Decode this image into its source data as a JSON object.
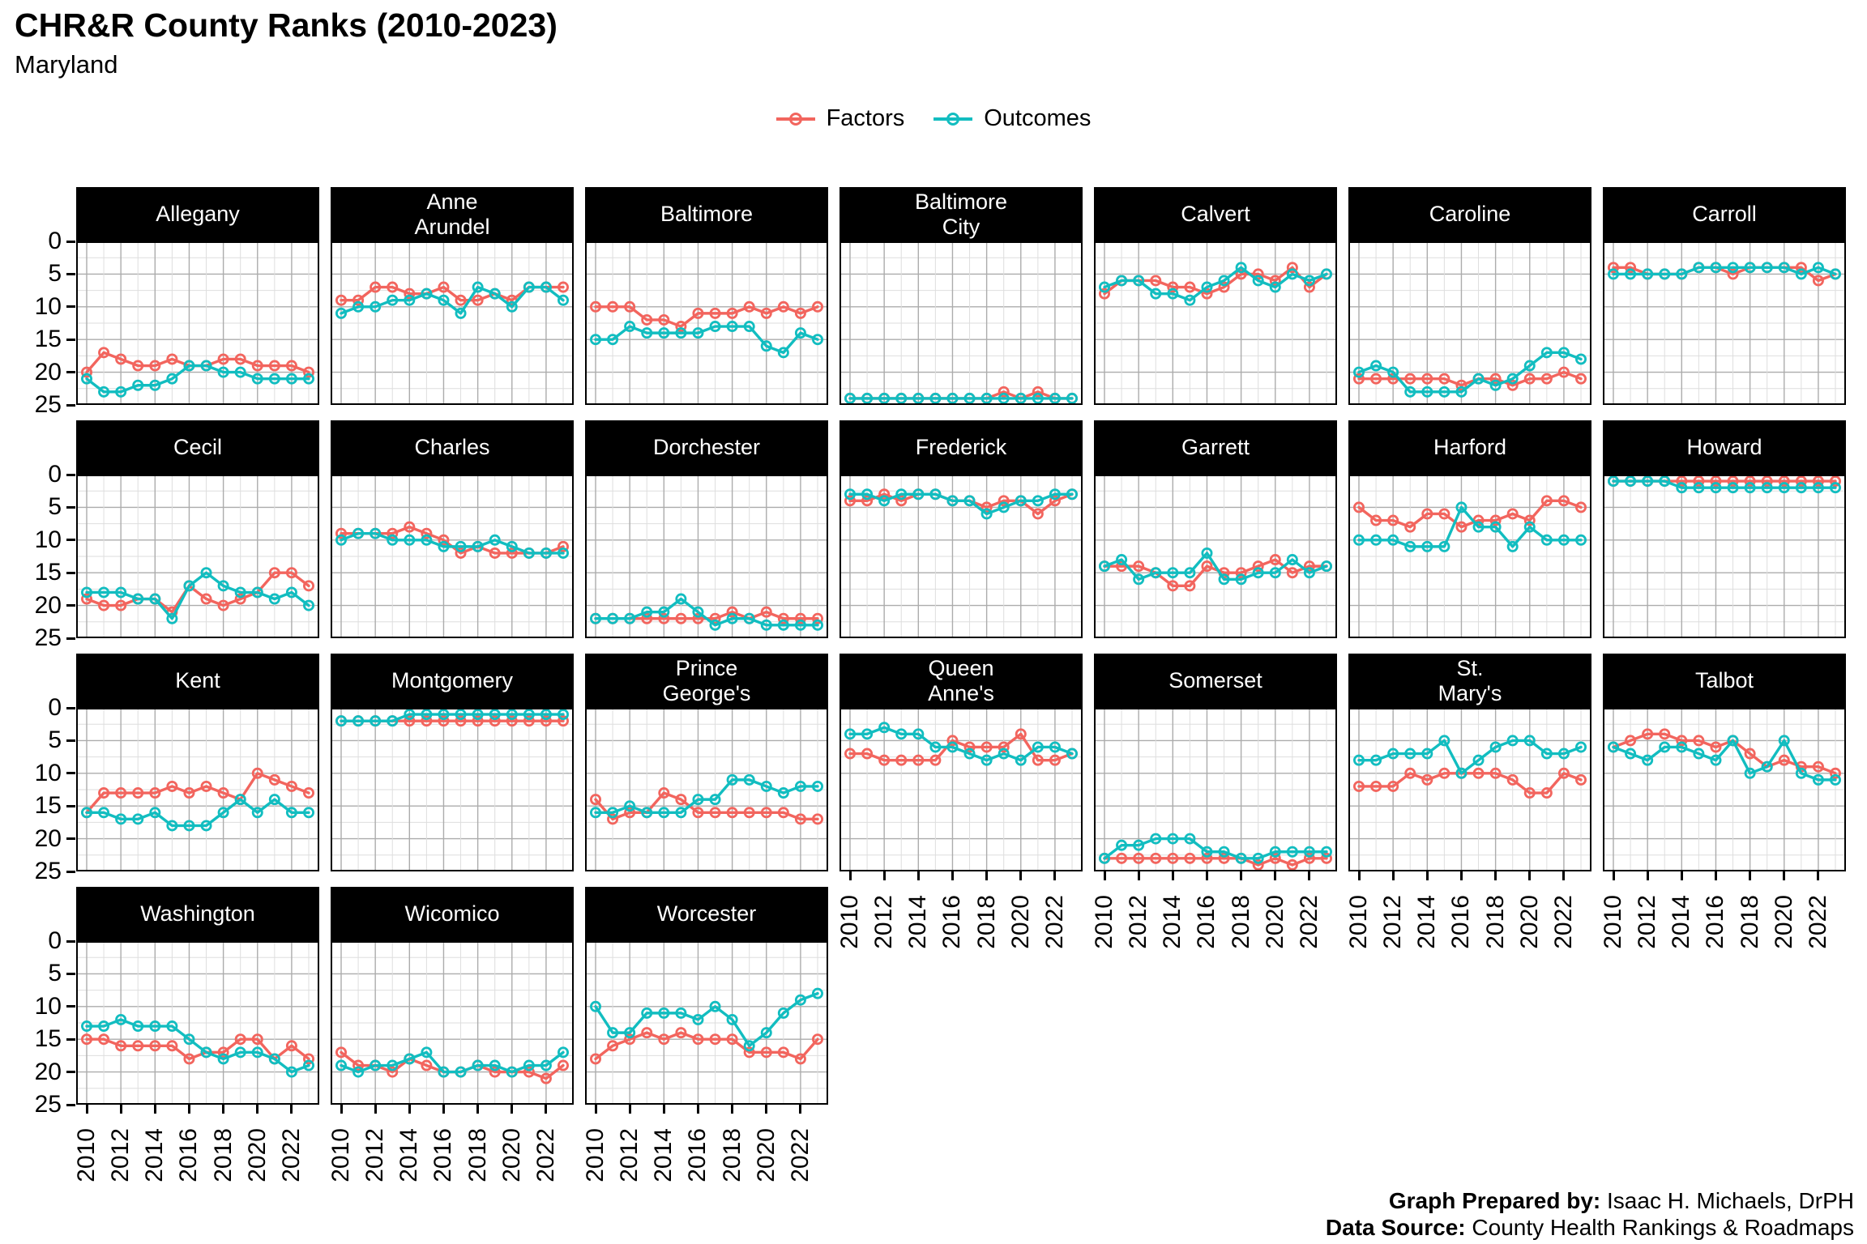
{
  "header": {
    "title": "CHR&R County Ranks (2010-2023)",
    "subtitle": "Maryland"
  },
  "legend": {
    "items": [
      {
        "label": "Factors",
        "color": "#F2655E"
      },
      {
        "label": "Outcomes",
        "color": "#12BDC0"
      }
    ]
  },
  "axes": {
    "x_years": [
      2010,
      2011,
      2012,
      2013,
      2014,
      2015,
      2016,
      2017,
      2018,
      2019,
      2020,
      2021,
      2022,
      2023
    ],
    "x_tick_labels": [
      "2010",
      "2012",
      "2014",
      "2016",
      "2018",
      "2020",
      "2022"
    ],
    "y_tick_labels": [
      "0",
      "5",
      "10",
      "15",
      "20",
      "25"
    ],
    "y_ticks": [
      0,
      5,
      10,
      15,
      20,
      25
    ],
    "y_range": [
      0,
      25
    ]
  },
  "chart_data": {
    "type": "line",
    "title": "CHR&R County Ranks (2010-2023)",
    "subtitle": "Maryland",
    "x": [
      2010,
      2011,
      2012,
      2013,
      2014,
      2015,
      2016,
      2017,
      2018,
      2019,
      2020,
      2021,
      2022,
      2023
    ],
    "ylim": [
      0,
      25
    ],
    "y_inverted_axis": true,
    "grid": "on",
    "legend_position": "top-center",
    "series_names": [
      "Factors",
      "Outcomes"
    ],
    "facets": [
      {
        "name": "Allegany",
        "factors": [
          20,
          17,
          18,
          19,
          19,
          18,
          19,
          19,
          18,
          18,
          19,
          19,
          19,
          20
        ],
        "outcomes": [
          21,
          23,
          23,
          22,
          22,
          21,
          19,
          19,
          20,
          20,
          21,
          21,
          21,
          21
        ]
      },
      {
        "name": "Anne\nArundel",
        "factors": [
          9,
          9,
          7,
          7,
          8,
          8,
          7,
          9,
          9,
          8,
          9,
          7,
          7,
          7
        ],
        "outcomes": [
          11,
          10,
          10,
          9,
          9,
          8,
          9,
          11,
          7,
          8,
          10,
          7,
          7,
          9
        ]
      },
      {
        "name": "Baltimore",
        "factors": [
          10,
          10,
          10,
          12,
          12,
          13,
          11,
          11,
          11,
          10,
          11,
          10,
          11,
          10
        ],
        "outcomes": [
          15,
          15,
          13,
          14,
          14,
          14,
          14,
          13,
          13,
          13,
          16,
          17,
          14,
          15
        ]
      },
      {
        "name": "Baltimore\nCity",
        "factors": [
          24,
          24,
          24,
          24,
          24,
          24,
          24,
          24,
          24,
          23,
          24,
          23,
          24,
          24
        ],
        "outcomes": [
          24,
          24,
          24,
          24,
          24,
          24,
          24,
          24,
          24,
          24,
          24,
          24,
          24,
          24
        ]
      },
      {
        "name": "Calvert",
        "factors": [
          8,
          6,
          6,
          6,
          7,
          7,
          8,
          7,
          5,
          5,
          6,
          4,
          7,
          5
        ],
        "outcomes": [
          7,
          6,
          6,
          8,
          8,
          9,
          7,
          6,
          4,
          6,
          7,
          5,
          6,
          5
        ]
      },
      {
        "name": "Caroline",
        "factors": [
          21,
          21,
          21,
          21,
          21,
          21,
          22,
          21,
          21,
          22,
          21,
          21,
          20,
          21
        ],
        "outcomes": [
          20,
          19,
          20,
          23,
          23,
          23,
          23,
          21,
          22,
          21,
          19,
          17,
          17,
          18
        ]
      },
      {
        "name": "Carroll",
        "factors": [
          4,
          4,
          5,
          5,
          5,
          4,
          4,
          5,
          4,
          4,
          4,
          4,
          6,
          5
        ],
        "outcomes": [
          5,
          5,
          5,
          5,
          5,
          4,
          4,
          4,
          4,
          4,
          4,
          5,
          4,
          5
        ]
      },
      {
        "name": "Cecil",
        "factors": [
          19,
          20,
          20,
          19,
          19,
          21,
          17,
          19,
          20,
          19,
          18,
          15,
          15,
          17
        ],
        "outcomes": [
          18,
          18,
          18,
          19,
          19,
          22,
          17,
          15,
          17,
          18,
          18,
          19,
          18,
          20
        ]
      },
      {
        "name": "Charles",
        "factors": [
          9,
          9,
          9,
          9,
          8,
          9,
          10,
          12,
          11,
          12,
          12,
          12,
          12,
          11
        ],
        "outcomes": [
          10,
          9,
          9,
          10,
          10,
          10,
          11,
          11,
          11,
          10,
          11,
          12,
          12,
          12
        ]
      },
      {
        "name": "Dorchester",
        "factors": [
          22,
          22,
          22,
          22,
          22,
          22,
          22,
          22,
          21,
          22,
          21,
          22,
          22,
          22
        ],
        "outcomes": [
          22,
          22,
          22,
          21,
          21,
          19,
          21,
          23,
          22,
          22,
          23,
          23,
          23,
          23
        ]
      },
      {
        "name": "Frederick",
        "factors": [
          4,
          4,
          3,
          4,
          3,
          3,
          4,
          4,
          5,
          4,
          4,
          6,
          4,
          3
        ],
        "outcomes": [
          3,
          3,
          4,
          3,
          3,
          3,
          4,
          4,
          6,
          5,
          4,
          4,
          3,
          3
        ]
      },
      {
        "name": "Garrett",
        "factors": [
          14,
          14,
          14,
          15,
          17,
          17,
          14,
          15,
          15,
          14,
          13,
          15,
          14,
          14
        ],
        "outcomes": [
          14,
          13,
          16,
          15,
          15,
          15,
          12,
          16,
          16,
          15,
          15,
          13,
          15,
          14
        ]
      },
      {
        "name": "Harford",
        "factors": [
          5,
          7,
          7,
          8,
          6,
          6,
          8,
          7,
          7,
          6,
          7,
          4,
          4,
          5
        ],
        "outcomes": [
          10,
          10,
          10,
          11,
          11,
          11,
          5,
          8,
          8,
          11,
          8,
          10,
          10,
          10
        ]
      },
      {
        "name": "Howard",
        "factors": [
          1,
          1,
          1,
          1,
          1,
          1,
          1,
          1,
          1,
          1,
          1,
          1,
          1,
          1
        ],
        "outcomes": [
          1,
          1,
          1,
          1,
          2,
          2,
          2,
          2,
          2,
          2,
          2,
          2,
          2,
          2
        ]
      },
      {
        "name": "Kent",
        "factors": [
          16,
          13,
          13,
          13,
          13,
          12,
          13,
          12,
          13,
          14,
          10,
          11,
          12,
          13
        ],
        "outcomes": [
          16,
          16,
          17,
          17,
          16,
          18,
          18,
          18,
          16,
          14,
          16,
          14,
          16,
          16
        ]
      },
      {
        "name": "Montgomery",
        "factors": [
          2,
          2,
          2,
          2,
          2,
          2,
          2,
          2,
          2,
          2,
          2,
          2,
          2,
          2
        ],
        "outcomes": [
          2,
          2,
          2,
          2,
          1,
          1,
          1,
          1,
          1,
          1,
          1,
          1,
          1,
          1
        ]
      },
      {
        "name": "Prince\nGeorge's",
        "factors": [
          14,
          17,
          16,
          16,
          13,
          14,
          16,
          16,
          16,
          16,
          16,
          16,
          17,
          17
        ],
        "outcomes": [
          16,
          16,
          15,
          16,
          16,
          16,
          14,
          14,
          11,
          11,
          12,
          13,
          12,
          12
        ]
      },
      {
        "name": "Queen\nAnne's",
        "factors": [
          7,
          7,
          8,
          8,
          8,
          8,
          5,
          6,
          6,
          6,
          4,
          8,
          8,
          7
        ],
        "outcomes": [
          4,
          4,
          3,
          4,
          4,
          6,
          6,
          7,
          8,
          7,
          8,
          6,
          6,
          7
        ]
      },
      {
        "name": "Somerset",
        "factors": [
          23,
          23,
          23,
          23,
          23,
          23,
          23,
          23,
          23,
          24,
          23,
          24,
          23,
          23
        ],
        "outcomes": [
          23,
          21,
          21,
          20,
          20,
          20,
          22,
          22,
          23,
          23,
          22,
          22,
          22,
          22
        ]
      },
      {
        "name": "St.\nMary's",
        "factors": [
          12,
          12,
          12,
          10,
          11,
          10,
          10,
          10,
          10,
          11,
          13,
          13,
          10,
          11
        ],
        "outcomes": [
          8,
          8,
          7,
          7,
          7,
          5,
          10,
          8,
          6,
          5,
          5,
          7,
          7,
          6
        ]
      },
      {
        "name": "Talbot",
        "factors": [
          6,
          5,
          4,
          4,
          5,
          5,
          6,
          5,
          7,
          9,
          8,
          9,
          9,
          10
        ],
        "outcomes": [
          6,
          7,
          8,
          6,
          6,
          7,
          8,
          5,
          10,
          9,
          5,
          10,
          11,
          11
        ]
      },
      {
        "name": "Washington",
        "factors": [
          15,
          15,
          16,
          16,
          16,
          16,
          18,
          17,
          17,
          15,
          15,
          18,
          16,
          18
        ],
        "outcomes": [
          13,
          13,
          12,
          13,
          13,
          13,
          15,
          17,
          18,
          17,
          17,
          18,
          20,
          19
        ]
      },
      {
        "name": "Wicomico",
        "factors": [
          17,
          19,
          19,
          20,
          18,
          19,
          20,
          20,
          19,
          20,
          20,
          20,
          21,
          19
        ],
        "outcomes": [
          19,
          20,
          19,
          19,
          18,
          17,
          20,
          20,
          19,
          19,
          20,
          19,
          19,
          17
        ]
      },
      {
        "name": "Worcester",
        "factors": [
          18,
          16,
          15,
          14,
          15,
          14,
          15,
          15,
          15,
          17,
          17,
          17,
          18,
          15
        ],
        "outcomes": [
          10,
          14,
          14,
          11,
          11,
          11,
          12,
          10,
          12,
          16,
          14,
          11,
          9,
          8
        ]
      }
    ]
  },
  "colors": {
    "factors": "#F2655E",
    "outcomes": "#12BDC0",
    "strip_bg": "#000000",
    "strip_text": "#ffffff",
    "grid_major": "#ACACAC",
    "grid_minor": "#DEDEDE",
    "panel_border": "#000000"
  },
  "footer": {
    "prepared_by_label": "Graph Prepared by:",
    "prepared_by_value": "Isaac H. Michaels, DrPH",
    "source_label": "Data Source:",
    "source_value": "County Health Rankings & Roadmaps"
  }
}
